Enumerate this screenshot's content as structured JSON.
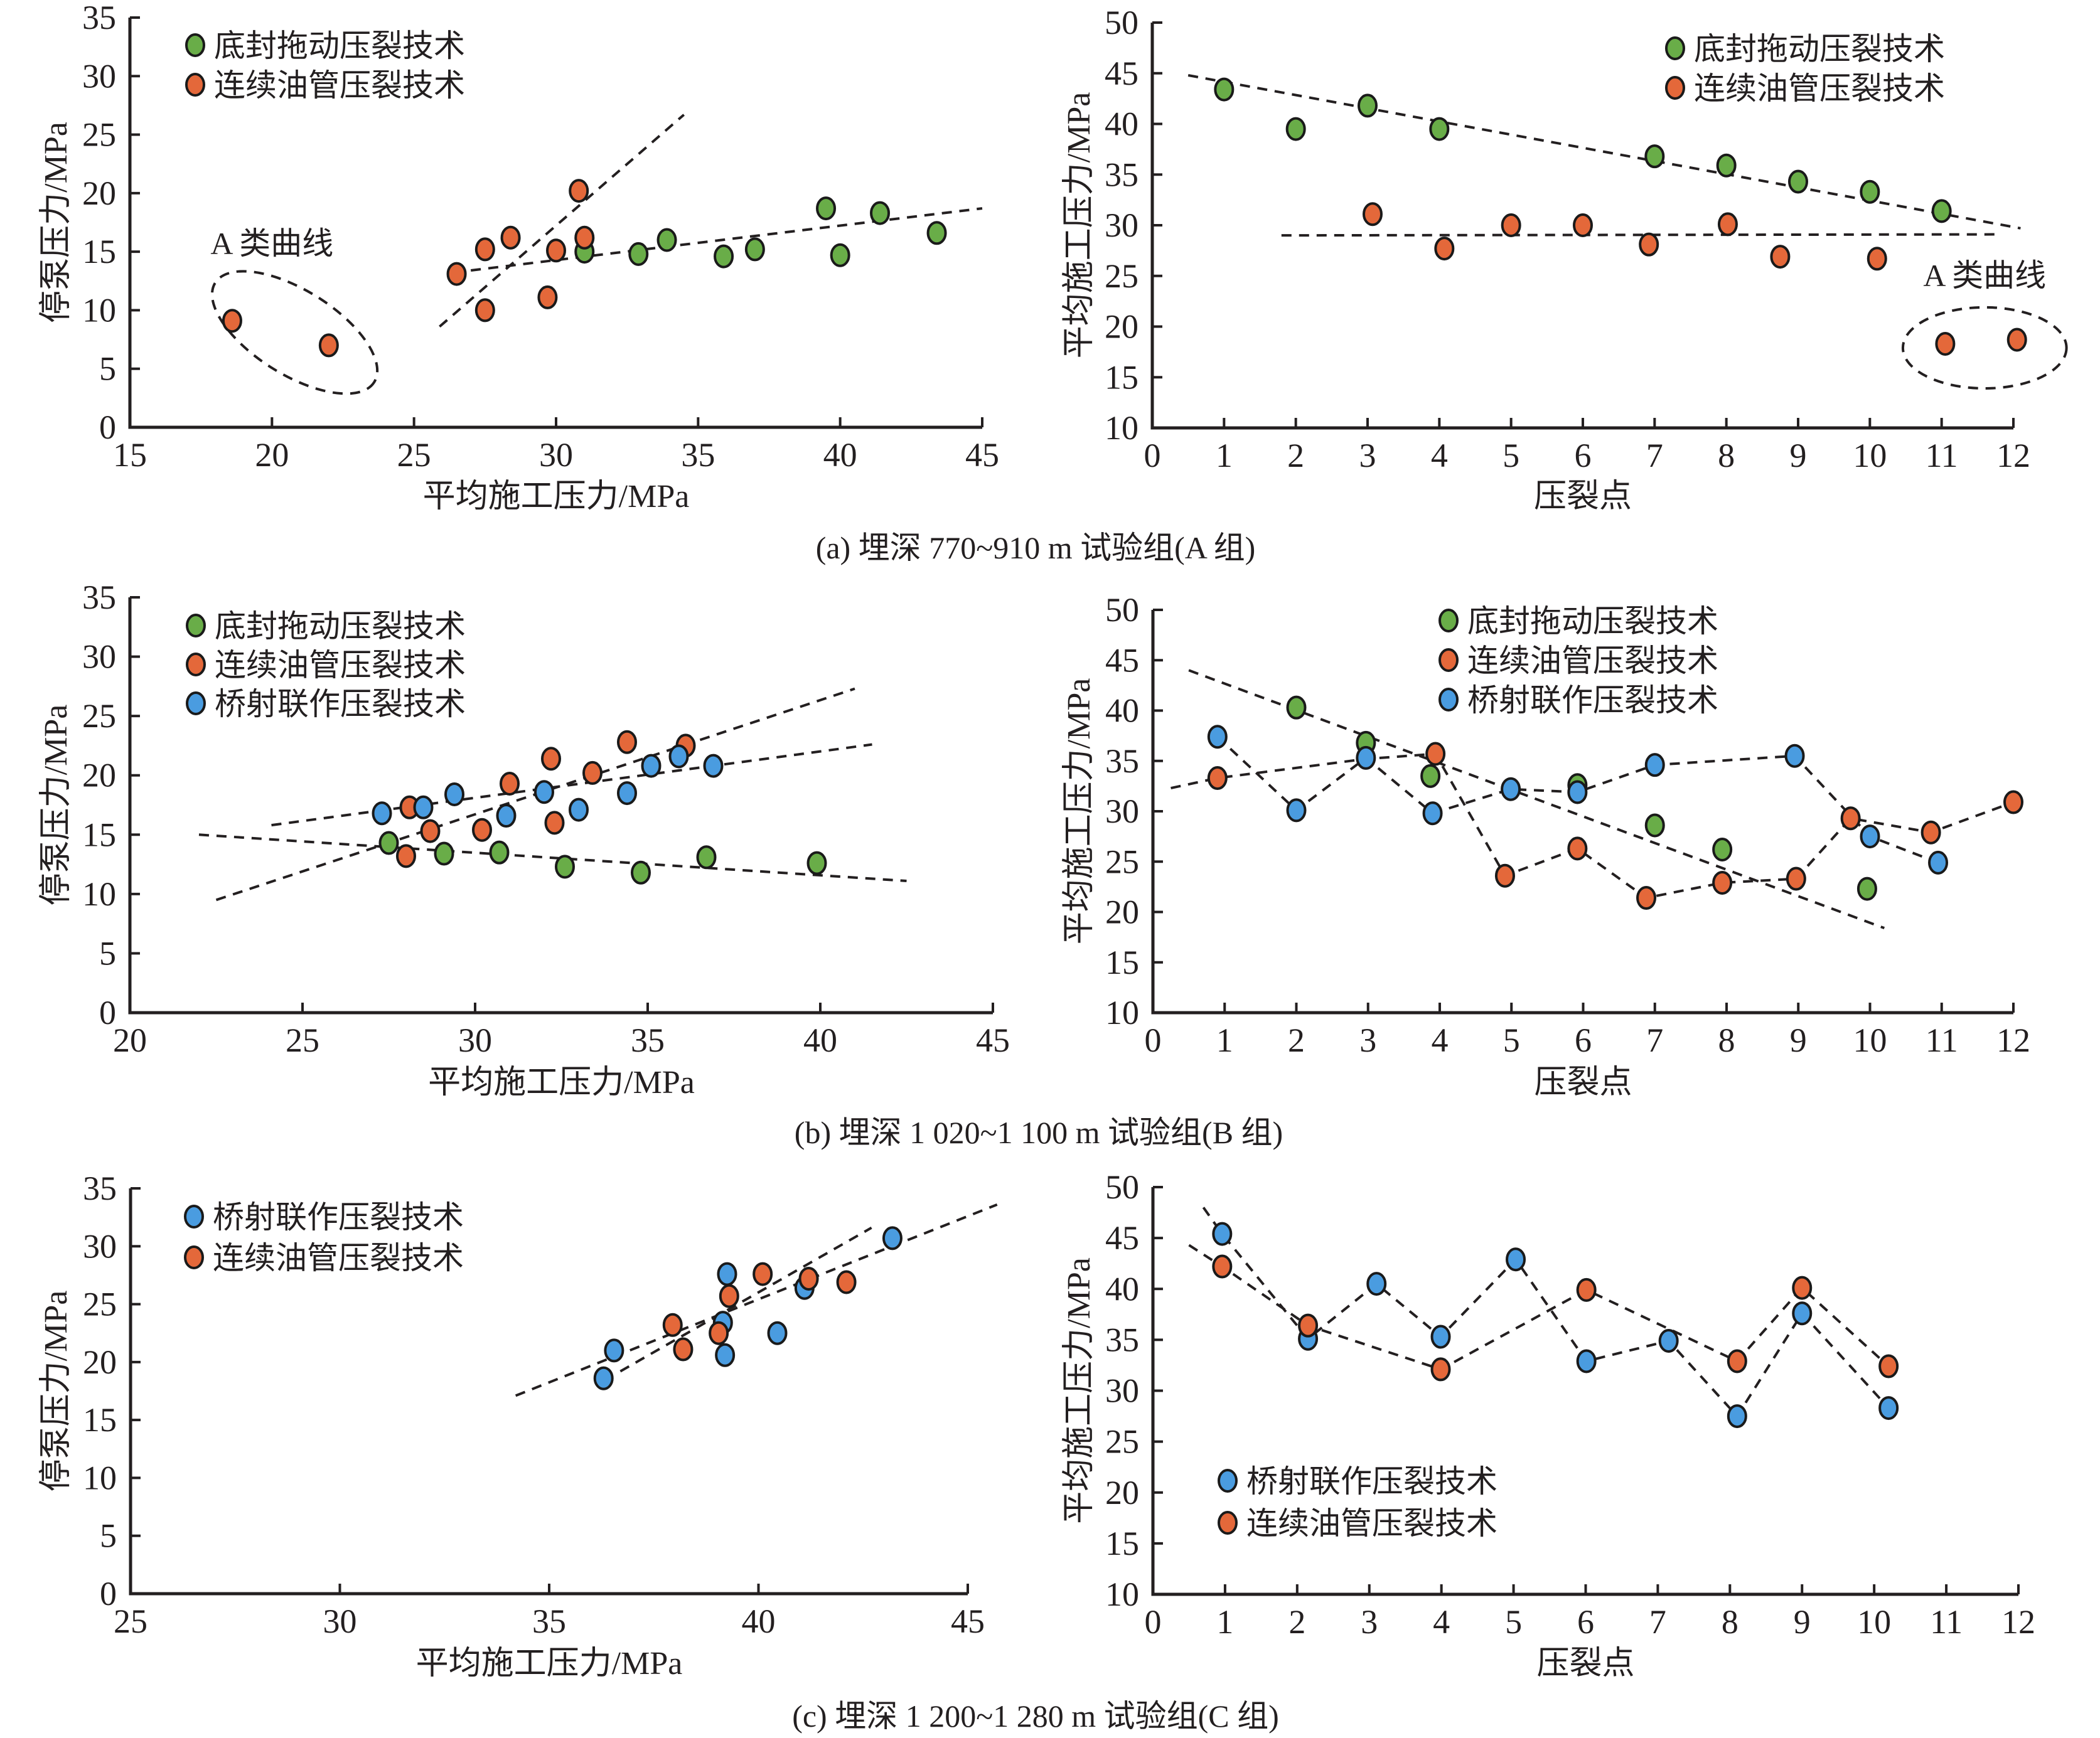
{
  "figure": {
    "captions": {
      "a": "(a) 埋深 770~910 m 试验组(A 组)",
      "b": "(b) 埋深 1 020~1 100 m 试验组(B 组)",
      "c": "(c) 埋深 1 200~1 280 m 试验组(C 组)"
    }
  },
  "colors": {
    "底封拖动压裂技术": "#69ad48",
    "连续油管压裂技术": "#e4683a",
    "桥射联作压裂技术": "#4a9ce0",
    "axis": "#231f20"
  },
  "chart_data": [
    {
      "id": "a-left",
      "type": "scatter",
      "title": "",
      "xlabel": "平均施工压力/MPa",
      "ylabel": "停泵压力/MPa",
      "xlim": [
        15,
        45
      ],
      "ylim": [
        0,
        35
      ],
      "xticks": [
        15,
        20,
        25,
        30,
        35,
        40,
        45
      ],
      "yticks": [
        0,
        5,
        10,
        15,
        20,
        25,
        30,
        35
      ],
      "grid": false,
      "legend": {
        "placement": "top-left",
        "entries": [
          "底封拖动压裂技术",
          "连续油管压裂技术"
        ]
      },
      "series": [
        {
          "name": "底封拖动压裂技术",
          "points": [
            [
              31.0,
              15.0
            ],
            [
              32.9,
              14.8
            ],
            [
              33.9,
              16.0
            ],
            [
              35.9,
              14.6
            ],
            [
              37.0,
              15.2
            ],
            [
              39.5,
              18.7
            ],
            [
              40.0,
              14.7
            ],
            [
              41.4,
              18.3
            ],
            [
              43.4,
              16.6
            ]
          ],
          "trend": [
            [
              27.0,
              13.4
            ],
            [
              45.0,
              18.7
            ]
          ],
          "connect": false
        },
        {
          "name": "连续油管压裂技术",
          "points": [
            [
              18.6,
              9.1
            ],
            [
              22.0,
              7.0
            ],
            [
              26.5,
              13.1
            ],
            [
              27.5,
              15.2
            ],
            [
              27.5,
              10.0
            ],
            [
              28.4,
              16.2
            ],
            [
              29.7,
              11.1
            ],
            [
              30.0,
              15.1
            ],
            [
              30.8,
              20.2
            ],
            [
              31.0,
              16.2
            ]
          ],
          "trend": [
            [
              25.9,
              8.6
            ],
            [
              34.5,
              26.7
            ]
          ],
          "connect": false
        }
      ],
      "annotations": [
        {
          "text": "A 类曲线",
          "x": 20.0,
          "y": 14.8,
          "ellipse": {
            "cx": 20.8,
            "cy": 8.1,
            "rx": 3.3,
            "ry": 3.6
          }
        }
      ]
    },
    {
      "id": "a-right",
      "type": "scatter",
      "title": "",
      "xlabel": "压裂点",
      "ylabel": "平均施工压力/MPa",
      "xlim": [
        0,
        12
      ],
      "ylim": [
        10,
        50
      ],
      "xticks": [
        0,
        1,
        2,
        3,
        4,
        5,
        6,
        7,
        8,
        9,
        10,
        11,
        12
      ],
      "yticks": [
        10,
        15,
        20,
        25,
        30,
        35,
        40,
        45,
        50
      ],
      "grid": false,
      "legend": {
        "placement": "top-right",
        "entries": [
          "底封拖动压裂技术",
          "连续油管压裂技术"
        ]
      },
      "series": [
        {
          "name": "底封拖动压裂技术",
          "points": [
            [
              1,
              43.4
            ],
            [
              2,
              39.5
            ],
            [
              3,
              41.8
            ],
            [
              4,
              39.5
            ],
            [
              7,
              36.8
            ],
            [
              8,
              35.9
            ],
            [
              9,
              34.3
            ],
            [
              10,
              33.3
            ],
            [
              11,
              31.4
            ]
          ],
          "trend": [
            [
              0.5,
              44.8
            ],
            [
              12.1,
              29.7
            ]
          ],
          "connect": false
        },
        {
          "name": "连续油管压裂技术",
          "points": [
            [
              3.07,
              31.1
            ],
            [
              4.07,
              27.7
            ],
            [
              5.0,
              30.0
            ],
            [
              6.0,
              30.0
            ],
            [
              6.92,
              28.1
            ],
            [
              8.02,
              30.1
            ],
            [
              8.75,
              26.9
            ],
            [
              10.1,
              26.7
            ],
            [
              11.05,
              18.3
            ],
            [
              12.05,
              18.7
            ]
          ],
          "trend": [
            [
              1.8,
              29.0
            ],
            [
              11.8,
              29.1
            ]
          ],
          "connect": false
        }
      ],
      "annotations": [
        {
          "text": "A 类曲线",
          "x": 11.6,
          "y": 24.0,
          "ellipse": {
            "cx": 11.6,
            "cy": 17.9,
            "rx": 1.14,
            "ry": 4.0
          }
        }
      ]
    },
    {
      "id": "b-left",
      "type": "scatter",
      "title": "",
      "xlabel": "平均施工压力/MPa",
      "ylabel": "停泵压力/MPa",
      "xlim": [
        20,
        45
      ],
      "ylim": [
        0,
        35
      ],
      "xticks": [
        20,
        25,
        30,
        35,
        40,
        45
      ],
      "yticks": [
        0,
        5,
        10,
        15,
        20,
        25,
        30,
        35
      ],
      "grid": false,
      "legend": {
        "placement": "top-left",
        "entries": [
          "底封拖动压裂技术",
          "连续油管压裂技术",
          "桥射联作压裂技术"
        ]
      },
      "series": [
        {
          "name": "底封拖动压裂技术",
          "points": [
            [
              27.5,
              14.3
            ],
            [
              29.1,
              13.4
            ],
            [
              30.7,
              13.5
            ],
            [
              32.6,
              12.3
            ],
            [
              34.8,
              11.8
            ],
            [
              36.7,
              13.1
            ],
            [
              39.9,
              12.6
            ]
          ],
          "trend": [
            [
              22.0,
              15.0
            ],
            [
              42.5,
              11.1
            ]
          ],
          "connect": false
        },
        {
          "name": "连续油管压裂技术",
          "points": [
            [
              28.1,
              17.3
            ],
            [
              28.0,
              13.2
            ],
            [
              28.7,
              15.3
            ],
            [
              30.2,
              15.4
            ],
            [
              31.0,
              19.3
            ],
            [
              32.2,
              21.4
            ],
            [
              32.3,
              16.0
            ],
            [
              33.4,
              20.2
            ],
            [
              34.4,
              22.8
            ],
            [
              36.1,
              22.5
            ]
          ],
          "trend": [
            [
              22.5,
              9.5
            ],
            [
              41.0,
              27.3
            ]
          ],
          "connect": false
        },
        {
          "name": "桥射联作压裂技术",
          "points": [
            [
              27.3,
              16.8
            ],
            [
              28.5,
              17.3
            ],
            [
              29.4,
              18.4
            ],
            [
              30.9,
              16.6
            ],
            [
              32.0,
              18.6
            ],
            [
              33.0,
              17.1
            ],
            [
              34.4,
              18.5
            ],
            [
              35.1,
              20.8
            ],
            [
              35.9,
              21.6
            ],
            [
              36.9,
              20.8
            ]
          ],
          "trend": [
            [
              24.1,
              15.8
            ],
            [
              41.5,
              22.6
            ]
          ],
          "connect": false
        }
      ],
      "annotations": []
    },
    {
      "id": "b-right",
      "type": "line",
      "title": "",
      "xlabel": "压裂点",
      "ylabel": "平均施工压力/MPa",
      "xlim": [
        0,
        12
      ],
      "ylim": [
        10,
        50
      ],
      "xticks": [
        0,
        1,
        2,
        3,
        4,
        5,
        6,
        7,
        8,
        9,
        10,
        11,
        12
      ],
      "yticks": [
        10,
        15,
        20,
        25,
        30,
        35,
        40,
        45,
        50
      ],
      "grid": false,
      "legend": {
        "placement": "top-center",
        "entries": [
          "底封拖动压裂技术",
          "连续油管压裂技术",
          "桥射联作压裂技术"
        ]
      },
      "series": [
        {
          "name": "底封拖动压裂技术",
          "points": [
            [
              2.0,
              40.3
            ],
            [
              2.97,
              36.8
            ],
            [
              3.87,
              33.5
            ],
            [
              5.92,
              32.6
            ],
            [
              7.0,
              28.6
            ],
            [
              7.94,
              26.2
            ],
            [
              9.96,
              22.3
            ]
          ],
          "trend": [
            [
              0.5,
              44.0
            ],
            [
              10.2,
              18.4
            ]
          ],
          "connect": false
        },
        {
          "name": "连续油管压裂技术",
          "points": [
            [
              0.9,
              33.3
            ],
            [
              3.94,
              35.7
            ],
            [
              4.91,
              23.6
            ],
            [
              5.92,
              26.3
            ],
            [
              6.88,
              21.4
            ],
            [
              7.94,
              22.9
            ],
            [
              8.97,
              23.3
            ],
            [
              9.73,
              29.3
            ],
            [
              10.85,
              27.9
            ],
            [
              12.0,
              30.9
            ]
          ],
          "path": [
            [
              0.25,
              32.3
            ],
            [
              0.9,
              33.3
            ],
            [
              2.97,
              35.2
            ],
            [
              3.94,
              35.7
            ],
            [
              4.91,
              23.6
            ],
            [
              5.92,
              26.3
            ],
            [
              6.88,
              21.4
            ],
            [
              7.94,
              22.9
            ],
            [
              8.97,
              23.3
            ],
            [
              9.73,
              29.3
            ],
            [
              10.85,
              27.9
            ],
            [
              12.0,
              30.9
            ]
          ],
          "connect": true
        },
        {
          "name": "桥射联作压裂技术",
          "points": [
            [
              0.9,
              37.4
            ],
            [
              2.0,
              30.1
            ],
            [
              2.97,
              35.3
            ],
            [
              3.9,
              29.8
            ],
            [
              4.99,
              32.2
            ],
            [
              5.92,
              31.9
            ],
            [
              7.0,
              34.6
            ],
            [
              8.95,
              35.5
            ],
            [
              10.0,
              27.5
            ],
            [
              10.95,
              24.9
            ]
          ],
          "connect": true
        }
      ],
      "annotations": []
    },
    {
      "id": "c-left",
      "type": "scatter",
      "title": "",
      "xlabel": "平均施工压力/MPa",
      "ylabel": "停泵压力/MPa",
      "xlim": [
        25,
        45
      ],
      "ylim": [
        0,
        35
      ],
      "xticks": [
        25,
        30,
        35,
        40,
        45
      ],
      "yticks": [
        0,
        5,
        10,
        15,
        20,
        25,
        30,
        35
      ],
      "grid": false,
      "legend": {
        "placement": "top-left",
        "entries": [
          "桥射联作压裂技术",
          "连续油管压裂技术"
        ]
      },
      "series": [
        {
          "name": "桥射联作压裂技术",
          "points": [
            [
              36.3,
              18.6
            ],
            [
              36.55,
              21.0
            ],
            [
              39.15,
              23.4
            ],
            [
              39.25,
              27.6
            ],
            [
              39.2,
              20.6
            ],
            [
              40.45,
              22.5
            ],
            [
              41.1,
              26.4
            ],
            [
              43.2,
              30.7
            ]
          ],
          "trend": [
            [
              34.2,
              17.1
            ],
            [
              45.7,
              33.6
            ]
          ],
          "connect": false
        },
        {
          "name": "连续油管压裂技术",
          "points": [
            [
              37.95,
              23.2
            ],
            [
              38.2,
              21.1
            ],
            [
              39.05,
              22.5
            ],
            [
              39.3,
              25.7
            ],
            [
              40.1,
              27.6
            ],
            [
              41.2,
              27.2
            ],
            [
              42.1,
              26.9
            ]
          ],
          "trend": [
            [
              36.7,
              19.2
            ],
            [
              42.7,
              31.6
            ]
          ],
          "connect": false
        }
      ],
      "annotations": []
    },
    {
      "id": "c-right",
      "type": "line",
      "title": "",
      "xlabel": "压裂点",
      "ylabel": "平均施工压力/MPa",
      "xlim": [
        0,
        12
      ],
      "ylim": [
        10,
        50
      ],
      "xticks": [
        0,
        1,
        2,
        3,
        4,
        5,
        6,
        7,
        8,
        9,
        10,
        11,
        12
      ],
      "yticks": [
        10,
        15,
        20,
        25,
        30,
        35,
        40,
        45,
        50
      ],
      "grid": false,
      "legend": {
        "placement": "bottom-left",
        "entries": [
          "桥射联作压裂技术",
          "连续油管压裂技术"
        ]
      },
      "series": [
        {
          "name": "桥射联作压裂技术",
          "points": [
            [
              0.96,
              45.4
            ],
            [
              2.15,
              35.1
            ],
            [
              3.1,
              40.5
            ],
            [
              3.99,
              35.3
            ],
            [
              5.03,
              42.9
            ],
            [
              6.01,
              32.9
            ],
            [
              7.15,
              34.9
            ],
            [
              8.1,
              27.5
            ],
            [
              9.0,
              37.6
            ],
            [
              10.2,
              28.3
            ]
          ],
          "path": [
            [
              0.7,
              48.0
            ],
            [
              0.96,
              45.4
            ],
            [
              2.15,
              35.1
            ],
            [
              3.1,
              40.5
            ],
            [
              3.99,
              35.3
            ],
            [
              5.03,
              42.9
            ],
            [
              6.01,
              32.9
            ],
            [
              7.15,
              34.9
            ],
            [
              8.1,
              27.5
            ],
            [
              9.0,
              37.6
            ],
            [
              10.2,
              28.3
            ]
          ],
          "connect": true
        },
        {
          "name": "连续油管压裂技术",
          "points": [
            [
              0.96,
              42.2
            ],
            [
              2.15,
              36.4
            ],
            [
              3.99,
              32.1
            ],
            [
              6.01,
              39.9
            ],
            [
              8.1,
              32.9
            ],
            [
              9.0,
              40.1
            ],
            [
              10.2,
              32.4
            ]
          ],
          "path": [
            [
              0.5,
              44.3
            ],
            [
              0.96,
              42.2
            ],
            [
              2.15,
              36.4
            ],
            [
              3.99,
              32.1
            ],
            [
              6.01,
              39.9
            ],
            [
              8.1,
              32.9
            ],
            [
              9.0,
              40.1
            ],
            [
              10.2,
              32.4
            ]
          ],
          "connect": true
        }
      ],
      "annotations": []
    }
  ]
}
